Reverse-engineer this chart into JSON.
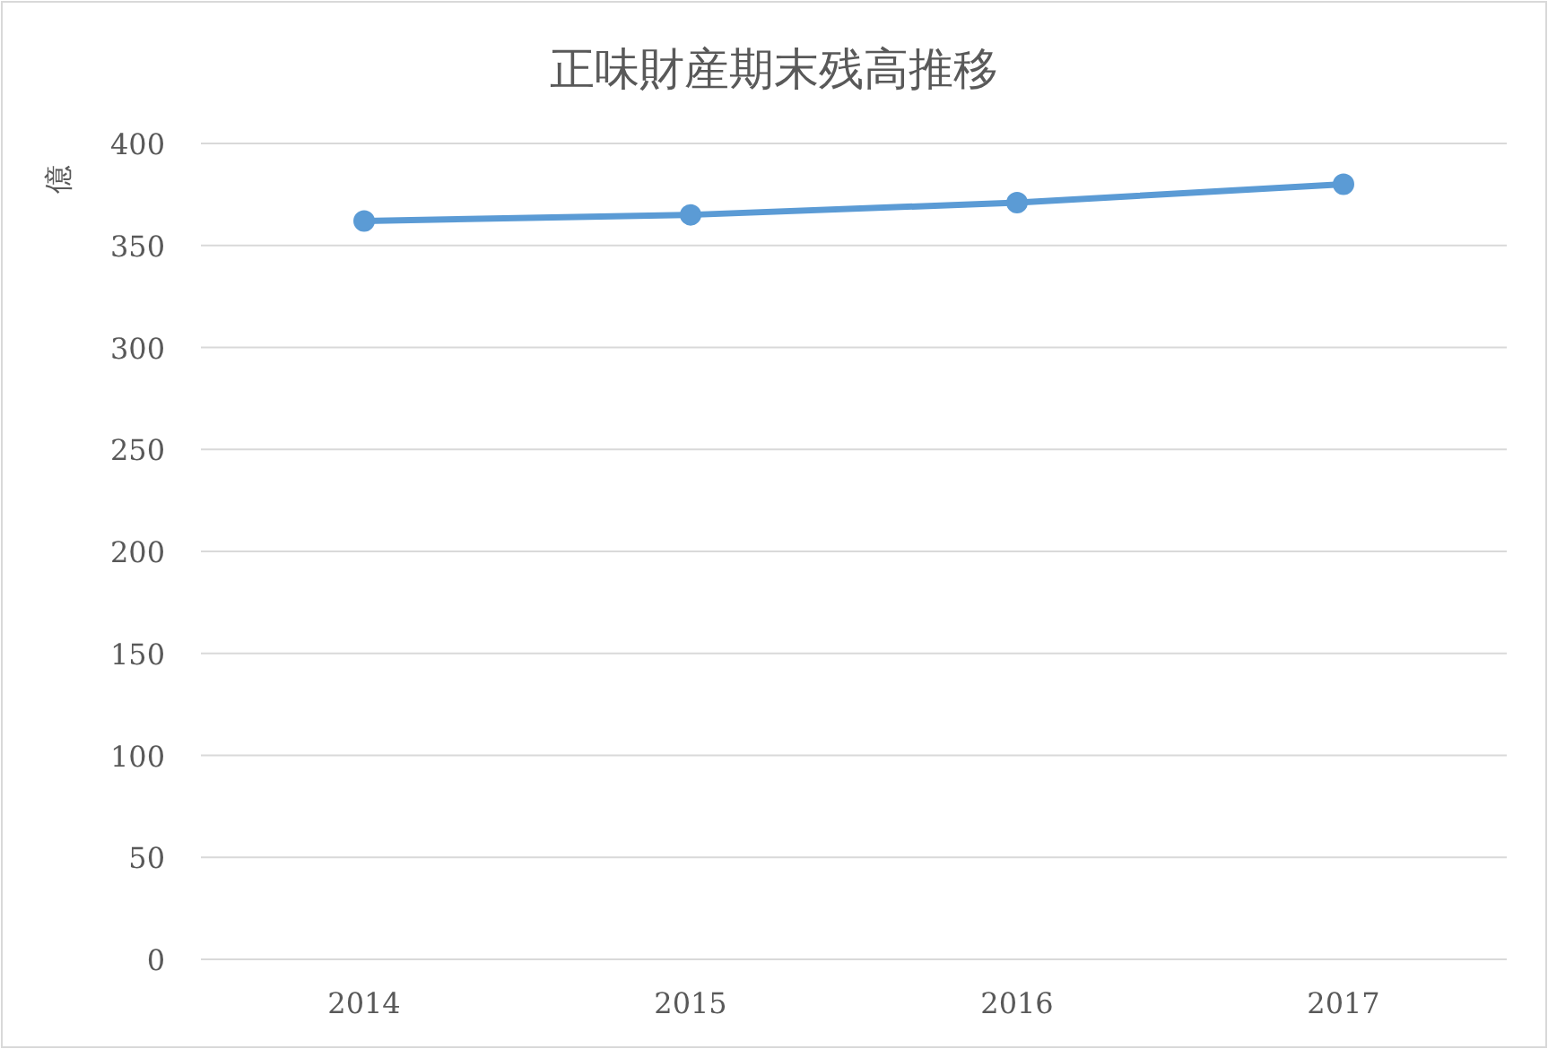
{
  "chart_data": {
    "type": "line",
    "title": "正味財産期末残高推移",
    "ylabel": "億",
    "categories": [
      "2014",
      "2015",
      "2016",
      "2017"
    ],
    "series": [
      {
        "color": "#5b9bd5",
        "values": [
          362,
          365,
          371,
          380
        ]
      }
    ],
    "ylim": [
      0,
      400
    ],
    "yticks": [
      0,
      50,
      100,
      150,
      200,
      250,
      300,
      350,
      400
    ],
    "grid": "y",
    "marker": "circle"
  }
}
